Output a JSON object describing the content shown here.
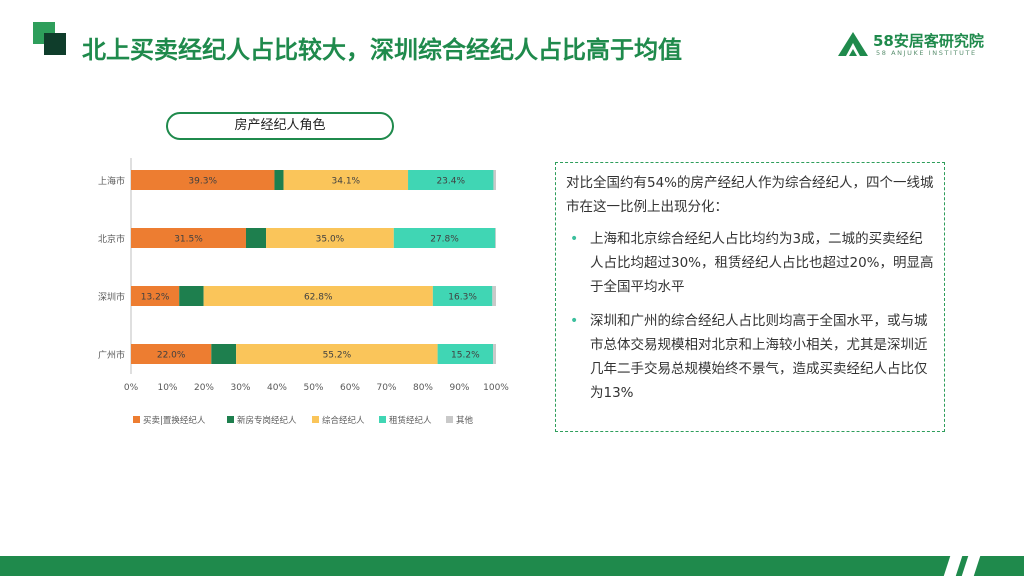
{
  "header": {
    "title": "北上买卖经纪人占比较大，深圳综合经纪人占比高于均值",
    "logo_cn": "58安居客研究院",
    "logo_en": "58 ANJUKE INSTITUTE"
  },
  "chart_title": "房产经纪人角色",
  "chart_data": {
    "type": "bar",
    "orientation": "horizontal",
    "stacked": true,
    "categories": [
      "上海市",
      "北京市",
      "深圳市",
      "广州市"
    ],
    "series": [
      {
        "name": "买卖|置换经纪人",
        "color": "#ed7d31",
        "values": [
          39.3,
          31.5,
          13.2,
          22.0
        ]
      },
      {
        "name": "新房专岗经纪人",
        "color": "#1e7f4e",
        "values": [
          2.5,
          5.5,
          6.7,
          6.8
        ]
      },
      {
        "name": "综合经纪人",
        "color": "#fac55a",
        "values": [
          34.1,
          35.0,
          62.8,
          55.2
        ]
      },
      {
        "name": "租赁经纪人",
        "color": "#40d6b4",
        "values": [
          23.4,
          27.8,
          16.3,
          15.2
        ]
      },
      {
        "name": "其他",
        "color": "#c9c9c9",
        "values": [
          0.7,
          0.2,
          1.0,
          0.8
        ]
      }
    ],
    "labels": [
      [
        "39.3%",
        "",
        "34.1%",
        "23.4%",
        ""
      ],
      [
        "31.5%",
        "",
        "35.0%",
        "27.8%",
        ""
      ],
      [
        "13.2%",
        "",
        "62.8%",
        "16.3%",
        ""
      ],
      [
        "22.0%",
        "",
        "55.2%",
        "15.2%",
        ""
      ]
    ],
    "xaxis_ticks": [
      "0%",
      "10%",
      "20%",
      "30%",
      "40%",
      "50%",
      "60%",
      "70%",
      "80%",
      "90%",
      "100%"
    ],
    "xlim": [
      0,
      100
    ],
    "grid": false,
    "legend_position": "bottom"
  },
  "textbox": {
    "intro": "对比全国约有54%的房产经纪人作为综合经纪人，四个一线城市在这一比例上出现分化：",
    "bullets": [
      "上海和北京综合经纪人占比均约为3成，二城的买卖经纪人占比均超过30%，租赁经纪人占比也超过20%，明显高于全国平均水平",
      "深圳和广州的综合经纪人占比则均高于全国水平，或与城市总体交易规模相对北京和上海较小相关，尤其是深圳近几年二手交易总规模始终不景气，造成买卖经纪人占比仅为13%"
    ],
    "bullet_symbol": "•"
  },
  "colors": {
    "brand_green": "#1f8a4c",
    "dark_green": "#0f3d2b"
  }
}
